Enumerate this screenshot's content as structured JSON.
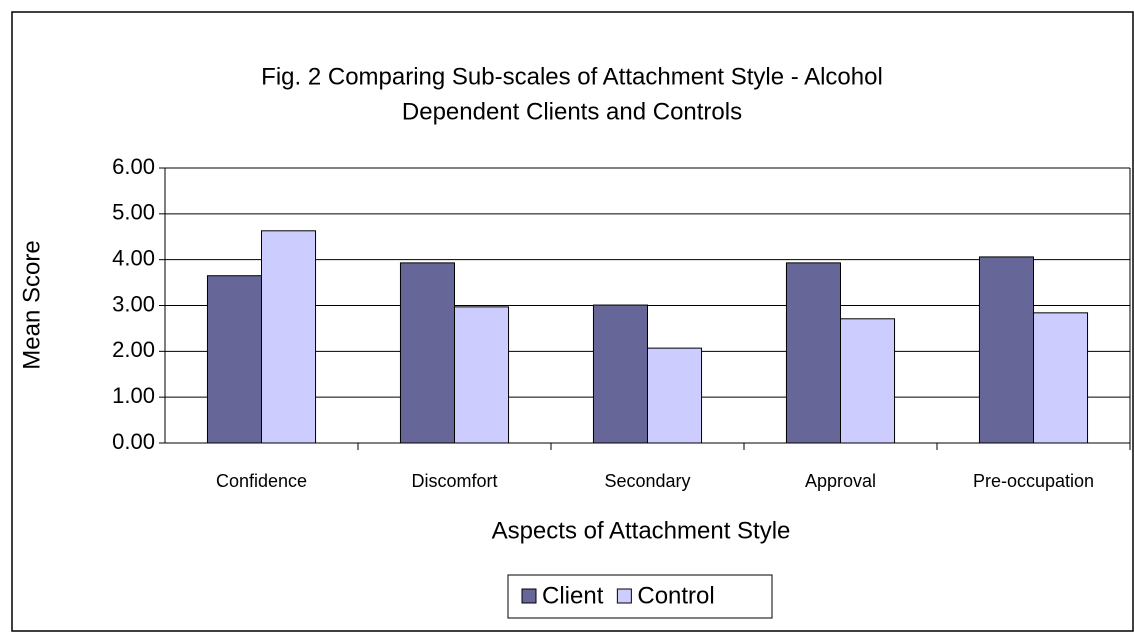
{
  "chart_data": {
    "type": "bar",
    "title": [
      "Fig. 2 Comparing  Sub-scales of Attachment Style - Alcohol",
      "Dependent Clients and Controls"
    ],
    "x_label": "Aspects of Attachment Style",
    "y_label": "Mean Score",
    "categories": [
      "Confidence",
      "Discomfort",
      "Secondary",
      "Approval",
      "Pre-occupation"
    ],
    "series": [
      {
        "name": "Client",
        "color": "#666699",
        "values": [
          3.65,
          3.93,
          3.01,
          3.93,
          4.06
        ]
      },
      {
        "name": "Control",
        "color": "#ccccff",
        "values": [
          4.63,
          2.97,
          2.07,
          2.71,
          2.84
        ]
      }
    ],
    "ylim": [
      0,
      6
    ],
    "yticks": [
      {
        "value": 0,
        "label": "0.00"
      },
      {
        "value": 1,
        "label": "1.00"
      },
      {
        "value": 2,
        "label": "2.00"
      },
      {
        "value": 3,
        "label": "3.00"
      },
      {
        "value": 4,
        "label": "4.00"
      },
      {
        "value": 5,
        "label": "5.00"
      },
      {
        "value": 6,
        "label": "6.00"
      }
    ],
    "grid": true
  }
}
